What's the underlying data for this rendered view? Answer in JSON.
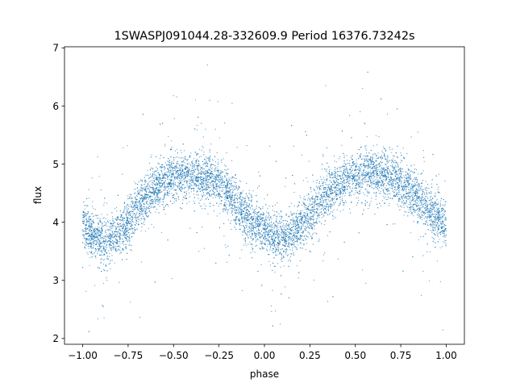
{
  "chart_data": {
    "type": "scatter",
    "title": "1SWASPJ091044.28-332609.9 Period 16376.73242s",
    "xlabel": "phase",
    "ylabel": "flux",
    "xlim": [
      -1.1,
      1.1
    ],
    "ylim": [
      1.9,
      7.02
    ],
    "xticks": [
      "−1.00",
      "−0.75",
      "−0.50",
      "−0.25",
      "0.00",
      "0.25",
      "0.50",
      "0.75",
      "1.00"
    ],
    "xtick_values": [
      -1.0,
      -0.75,
      -0.5,
      -0.25,
      0.0,
      0.25,
      0.5,
      0.75,
      1.0
    ],
    "yticks": [
      "2",
      "3",
      "4",
      "5",
      "6",
      "7"
    ],
    "ytick_values": [
      2,
      3,
      4,
      5,
      6,
      7
    ],
    "grid": false,
    "legend": "none",
    "point_color": "#1f77b4",
    "series": [
      {
        "phase": [
          -1.0,
          -0.95,
          -0.9,
          -0.85,
          -0.8,
          -0.75,
          -0.7,
          -0.65,
          -0.6,
          -0.55,
          -0.5,
          -0.45,
          -0.4,
          -0.35,
          -0.3,
          -0.25,
          -0.2,
          -0.15,
          -0.1,
          -0.05,
          0.0,
          0.05,
          0.1,
          0.15,
          0.2,
          0.25,
          0.3,
          0.35,
          0.4,
          0.45,
          0.5,
          0.55,
          0.6,
          0.65,
          0.7,
          0.75,
          0.8,
          0.85,
          0.9,
          0.95,
          1.0
        ],
        "flux_mean": [
          3.95,
          3.8,
          3.7,
          3.7,
          3.8,
          4.0,
          4.25,
          4.45,
          4.6,
          4.7,
          4.75,
          4.8,
          4.8,
          4.8,
          4.75,
          4.65,
          4.5,
          4.3,
          4.1,
          3.95,
          3.85,
          3.72,
          3.7,
          3.78,
          3.95,
          4.15,
          4.35,
          4.5,
          4.62,
          4.72,
          4.78,
          4.8,
          4.82,
          4.8,
          4.75,
          4.65,
          4.55,
          4.4,
          4.25,
          4.1,
          3.95
        ],
        "flux_spread": 0.2,
        "flux_range": [
          2.1,
          6.8
        ]
      }
    ]
  }
}
